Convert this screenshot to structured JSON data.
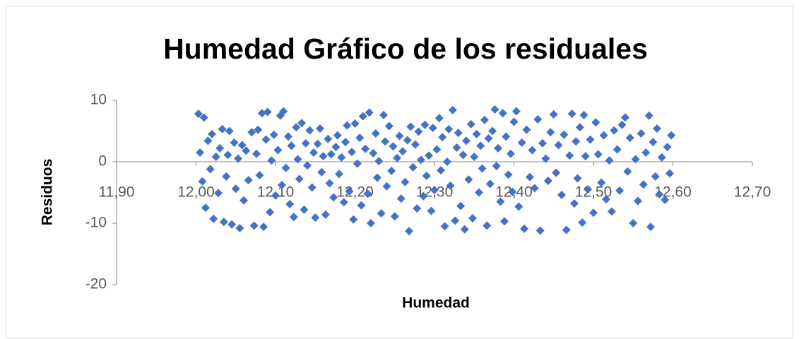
{
  "chart_data": {
    "type": "scatter",
    "title": "Humedad Gráfico de los residuales",
    "xlabel": "Humedad",
    "ylabel": "Residuos",
    "xlim": [
      11.9,
      12.7
    ],
    "xticks": [
      {
        "value": 11.9,
        "label": "11,90"
      },
      {
        "value": 12.0,
        "label": "12,00"
      },
      {
        "value": 12.1,
        "label": "12,10"
      },
      {
        "value": 12.2,
        "label": "12,20"
      },
      {
        "value": 12.3,
        "label": "12,30"
      },
      {
        "value": 12.4,
        "label": "12,40"
      },
      {
        "value": 12.5,
        "label": "12,50"
      },
      {
        "value": 12.6,
        "label": "12,60"
      },
      {
        "value": 12.7,
        "label": "12,70"
      }
    ],
    "ylim": [
      -20,
      10
    ],
    "yticks": [
      -20,
      -10,
      0,
      10
    ],
    "color": "#4472c4",
    "x": [
      12.003,
      12.005,
      12.008,
      12.01,
      12.012,
      12.015,
      12.018,
      12.02,
      12.022,
      12.025,
      12.028,
      12.03,
      12.033,
      12.035,
      12.038,
      12.04,
      12.042,
      12.045,
      12.048,
      12.05,
      12.053,
      12.055,
      12.058,
      12.06,
      12.063,
      12.066,
      12.07,
      12.073,
      12.076,
      12.078,
      12.08,
      12.083,
      12.085,
      12.088,
      12.09,
      12.093,
      12.095,
      12.098,
      12.1,
      12.103,
      12.106,
      12.108,
      12.11,
      12.113,
      12.116,
      12.118,
      12.12,
      12.123,
      12.126,
      12.128,
      12.13,
      12.133,
      12.136,
      12.138,
      12.14,
      12.143,
      12.146,
      12.148,
      12.15,
      12.153,
      12.156,
      12.158,
      12.16,
      12.163,
      12.166,
      12.168,
      12.17,
      12.173,
      12.176,
      12.178,
      12.18,
      12.183,
      12.186,
      12.188,
      12.19,
      12.193,
      12.196,
      12.198,
      12.2,
      12.203,
      12.206,
      12.208,
      12.21,
      12.213,
      12.216,
      12.218,
      12.22,
      12.223,
      12.226,
      12.228,
      12.23,
      12.233,
      12.236,
      12.238,
      12.24,
      12.243,
      12.246,
      12.248,
      12.25,
      12.253,
      12.256,
      12.258,
      12.26,
      12.263,
      12.266,
      12.268,
      12.27,
      12.273,
      12.276,
      12.278,
      12.28,
      12.283,
      12.286,
      12.288,
      12.29,
      12.293,
      12.296,
      12.298,
      12.3,
      12.303,
      12.306,
      12.308,
      12.31,
      12.313,
      12.316,
      12.318,
      12.32,
      12.323,
      12.326,
      12.328,
      12.33,
      12.333,
      12.336,
      12.338,
      12.34,
      12.343,
      12.346,
      12.348,
      12.35,
      12.353,
      12.356,
      12.358,
      12.36,
      12.363,
      12.366,
      12.368,
      12.37,
      12.373,
      12.376,
      12.378,
      12.38,
      12.383,
      12.386,
      12.388,
      12.39,
      12.393,
      12.396,
      12.398,
      12.4,
      12.403,
      12.406,
      12.41,
      12.413,
      12.416,
      12.42,
      12.423,
      12.426,
      12.43,
      12.433,
      12.436,
      12.44,
      12.443,
      12.446,
      12.45,
      12.453,
      12.456,
      12.46,
      12.463,
      12.466,
      12.47,
      12.473,
      12.476,
      12.478,
      12.48,
      12.483,
      12.486,
      12.488,
      12.49,
      12.493,
      12.496,
      12.5,
      12.503,
      12.506,
      12.51,
      12.513,
      12.516,
      12.52,
      12.523,
      12.526,
      12.53,
      12.533,
      12.536,
      12.54,
      12.543,
      12.546,
      12.55,
      12.553,
      12.556,
      12.56,
      12.563,
      12.566,
      12.57,
      12.572,
      12.575,
      12.578,
      12.58,
      12.583,
      12.586,
      12.59,
      12.593,
      12.596,
      12.598
    ],
    "values": [
      7.8,
      1.5,
      -3.2,
      7.2,
      -7.5,
      3.4,
      -1.2,
      4.5,
      -9.3,
      0.8,
      -5.1,
      2.2,
      5.3,
      -9.8,
      -2.4,
      1.1,
      5.0,
      -10.2,
      3.1,
      -4.4,
      0.5,
      -10.8,
      2.7,
      -6.3,
      1.8,
      -3.0,
      4.8,
      -10.4,
      1.3,
      5.2,
      -2.2,
      7.9,
      -10.6,
      3.6,
      8.1,
      -8.2,
      0.2,
      4.4,
      -5.5,
      1.9,
      7.5,
      -3.8,
      8.2,
      -1.0,
      4.1,
      -6.9,
      2.6,
      -9.0,
      5.6,
      0.4,
      -2.8,
      6.3,
      -7.8,
      3.0,
      -0.6,
      5.1,
      -4.2,
      1.5,
      -9.1,
      2.9,
      5.4,
      -1.7,
      0.9,
      -8.6,
      3.7,
      -3.5,
      1.2,
      -5.8,
      2.4,
      4.3,
      -2.0,
      0.7,
      -6.6,
      3.2,
      5.9,
      -4.8,
      1.6,
      -9.4,
      6.2,
      -0.3,
      3.9,
      -7.1,
      7.4,
      2.1,
      -5.2,
      8.0,
      -10.0,
      1.4,
      4.6,
      -2.6,
      0.1,
      -8.4,
      7.6,
      3.3,
      -4.0,
      5.8,
      -1.5,
      2.5,
      -8.9,
      0.6,
      4.2,
      -6.0,
      1.7,
      -3.3,
      3.5,
      -11.3,
      5.7,
      -0.9,
      2.8,
      -7.6,
      4.9,
      0.3,
      -5.6,
      6.0,
      -2.3,
      1.0,
      -8.0,
      5.5,
      -4.6,
      2.0,
      7.1,
      -1.4,
      4.0,
      -10.5,
      0.0,
      5.3,
      -3.9,
      8.4,
      -9.6,
      2.3,
      4.7,
      -7.2,
      1.1,
      -11.0,
      3.4,
      -2.9,
      6.1,
      -9.2,
      0.8,
      4.5,
      -5.0,
      2.6,
      -1.1,
      6.8,
      -10.4,
      3.8,
      -3.6,
      5.0,
      8.5,
      -0.7,
      2.2,
      -6.5,
      7.9,
      -9.7,
      4.1,
      -2.1,
      1.3,
      -4.9,
      6.5,
      8.2,
      -7.3,
      3.1,
      -10.9,
      5.2,
      -2.5,
      1.9,
      -4.3,
      6.9,
      -11.2,
      3.0,
      0.5,
      -3.1,
      4.8,
      7.7,
      -1.8,
      2.7,
      -5.4,
      4.4,
      -11.1,
      1.0,
      7.8,
      -6.8,
      3.3,
      -2.7,
      5.6,
      -9.9,
      7.6,
      0.9,
      -4.5,
      3.6,
      -8.3,
      6.4,
      1.2,
      -3.4,
      4.3,
      -6.1,
      0.2,
      -8.1,
      5.1,
      2.0,
      -4.7,
      6.0,
      7.2,
      -1.6,
      3.9,
      -10.0,
      0.4,
      -6.4,
      4.6,
      -3.7,
      1.5,
      7.5,
      -10.6,
      3.2,
      -2.4,
      5.4,
      -5.3,
      0.7,
      -6.2,
      2.4,
      -1.9,
      4.3
    ]
  }
}
